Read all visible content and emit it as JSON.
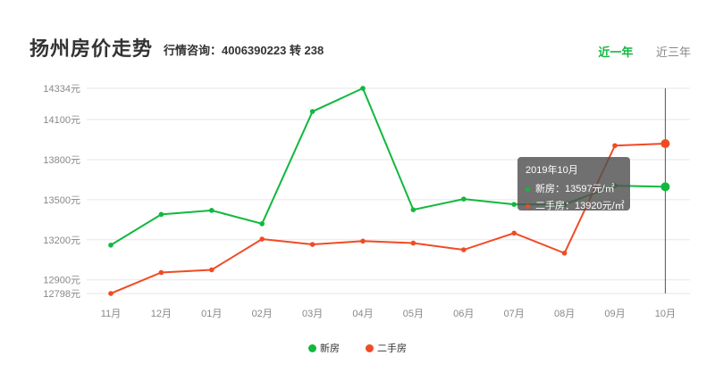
{
  "header": {
    "title": "扬州房价走势",
    "hotline": "行情咨询：4006390223 转 238",
    "tabs": [
      {
        "label": "近一年",
        "active": true
      },
      {
        "label": "近三年",
        "active": false
      }
    ]
  },
  "colors": {
    "new": "#11b83e",
    "second": "#f04b24",
    "grid": "#e6e6e6",
    "axis_text": "#888888",
    "crosshair": "#555555"
  },
  "chart_data": {
    "type": "line",
    "title": "扬州房价走势",
    "categories": [
      "11月",
      "12月",
      "01月",
      "02月",
      "03月",
      "04月",
      "05月",
      "06月",
      "07月",
      "08月",
      "09月",
      "10月"
    ],
    "y_ticks": [
      12798,
      12900,
      13200,
      13500,
      13800,
      14100,
      14334
    ],
    "y_tick_labels": [
      "12798元",
      "12900元",
      "13200元",
      "13500元",
      "13800元",
      "14100元",
      "14334元"
    ],
    "ylim": [
      12798,
      14334
    ],
    "grid": true,
    "legend_position": "bottom-center",
    "series": [
      {
        "name": "新房",
        "color": "#11b83e",
        "values": [
          13160,
          13390,
          13420,
          13320,
          14160,
          14334,
          13425,
          13505,
          13465,
          13465,
          13605,
          13597
        ]
      },
      {
        "name": "二手房",
        "color": "#f04b24",
        "values": [
          12798,
          12955,
          12975,
          13205,
          13165,
          13190,
          13175,
          13125,
          13250,
          13100,
          13905,
          13920
        ]
      }
    ],
    "highlight_index": 11
  },
  "tooltip": {
    "title": "2019年10月",
    "rows": [
      {
        "label": "新房：13597元/㎡",
        "color": "#11b83e"
      },
      {
        "label": "二手房：13920元/㎡",
        "color": "#f04b24"
      }
    ]
  },
  "legend": [
    {
      "label": "新房",
      "color": "#11b83e"
    },
    {
      "label": "二手房",
      "color": "#f04b24"
    }
  ]
}
